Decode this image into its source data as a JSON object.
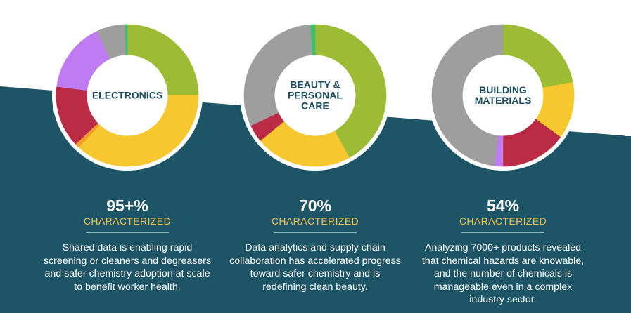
{
  "colors": {
    "teal_background": "#1d5466",
    "green": "#9cbc35",
    "yellow": "#f7c72f",
    "orange": "#f39b2a",
    "red": "#bb2b45",
    "purple": "#bf7cf2",
    "gray": "#9e9e9e",
    "bright_green": "#3bbf6d",
    "accent_text": "#f0c04c"
  },
  "chart_data": [
    {
      "type": "pie",
      "variant": "donut",
      "title": "ELECTRONICS",
      "slices": [
        {
          "color": "#9cbc35",
          "value": 25
        },
        {
          "color": "#f7c72f",
          "value": 37
        },
        {
          "color": "#f39b2a",
          "value": 1
        },
        {
          "color": "#bb2b45",
          "value": 14
        },
        {
          "color": "#bf7cf2",
          "value": 16
        },
        {
          "color": "#9e9e9e",
          "value": 6.5
        },
        {
          "color": "#3bbf6d",
          "value": 0.5
        }
      ],
      "headline": "95+%",
      "subheadline": "CHARACTERIZED",
      "description": "Shared data is enabling rapid screening or cleaners and degreasers and safer chemistry adoption at scale to benefit worker health."
    },
    {
      "type": "pie",
      "variant": "donut",
      "title": "BEAUTY & PERSONAL CARE",
      "slices": [
        {
          "color": "#9cbc35",
          "value": 42
        },
        {
          "color": "#f7c72f",
          "value": 22
        },
        {
          "color": "#bb2b45",
          "value": 4
        },
        {
          "color": "#9e9e9e",
          "value": 31
        },
        {
          "color": "#3bbf6d",
          "value": 1
        }
      ],
      "headline": "70%",
      "subheadline": "CHARACTERIZED",
      "description": "Data analytics and supply chain collaboration has accelerated progress toward safer chemistry and is redefining clean beauty."
    },
    {
      "type": "pie",
      "variant": "donut",
      "title": "BUILDING MATERIALS",
      "slices": [
        {
          "color": "#9cbc35",
          "value": 22
        },
        {
          "color": "#f7c72f",
          "value": 13
        },
        {
          "color": "#bb2b45",
          "value": 15
        },
        {
          "color": "#bf7cf2",
          "value": 2
        },
        {
          "color": "#9e9e9e",
          "value": 48
        }
      ],
      "headline": "54%",
      "subheadline": "CHARACTERIZED",
      "description": "Analyzing 7000+ products revealed that chemical hazards are knowable, and the number of chemicals is manageable even in a complex industry sector."
    }
  ]
}
